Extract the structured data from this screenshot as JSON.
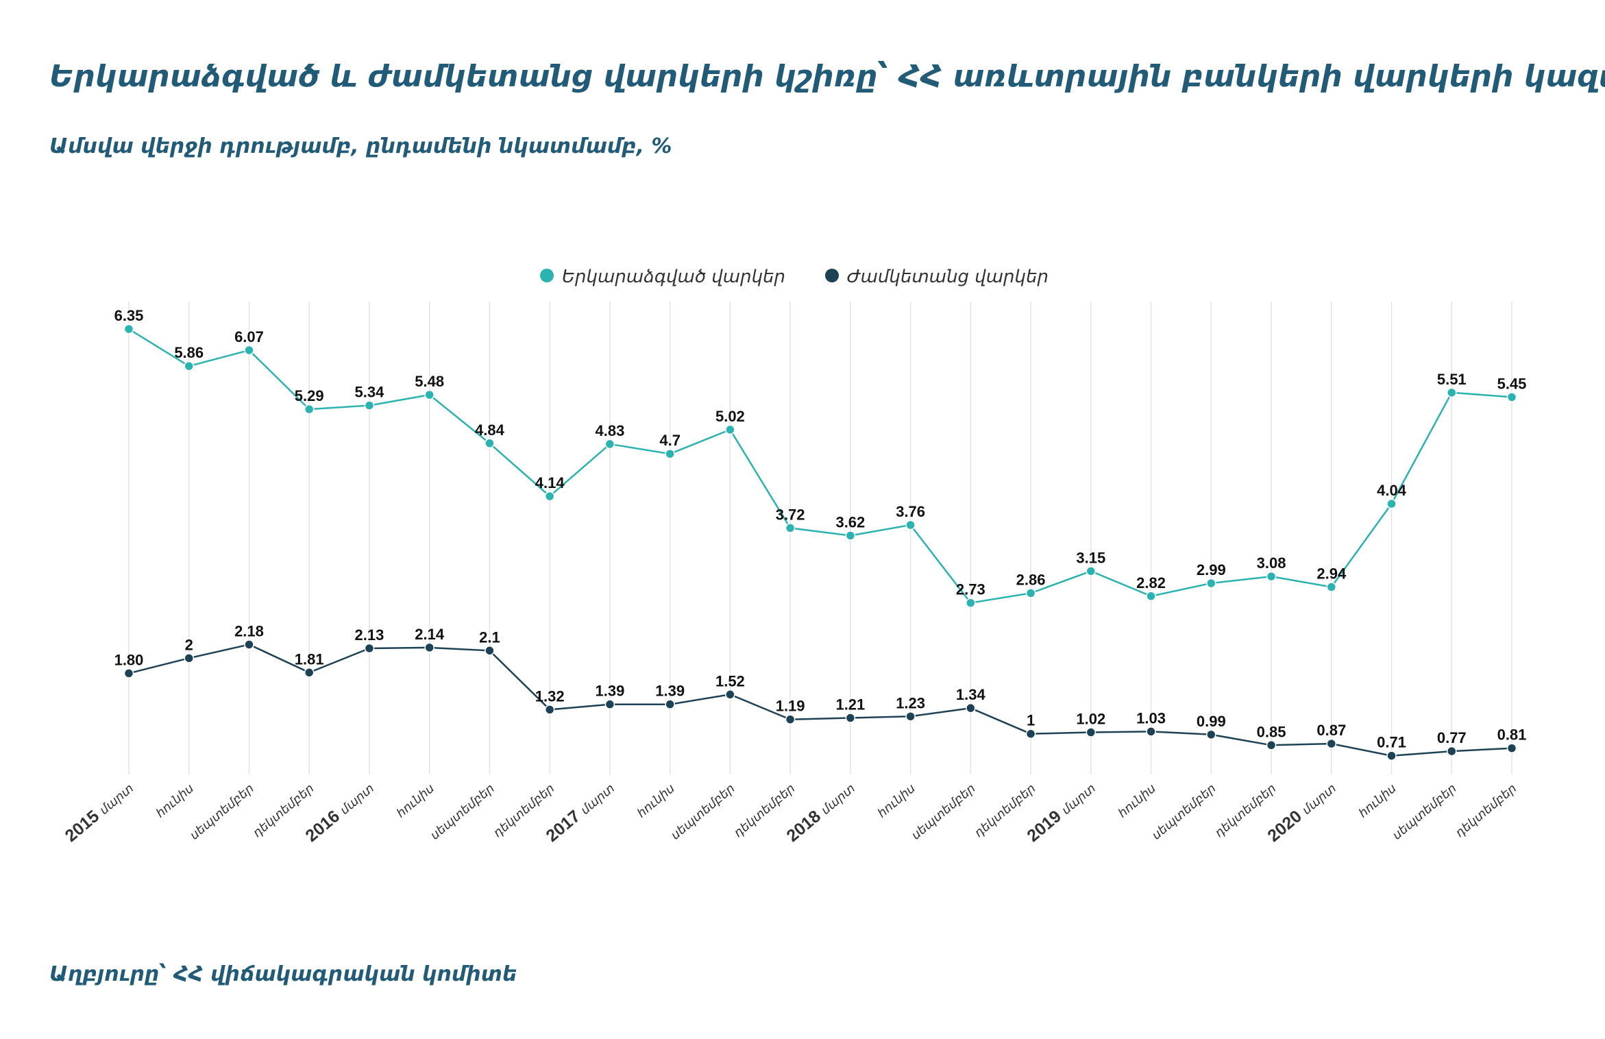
{
  "title": "Երկարաձգված և ժամկետանց վարկերի կշիռը՝  ՀՀ առևտրային բանկերի վարկերի կազմում",
  "subtitle": "Ամսվա վերջի դրությամբ, ընդամենի նկատմամբ, %",
  "source": "Աղբյուրը՝  ՀՀ վիճակագրական կոմիտե",
  "chart_data": {
    "type": "line",
    "categories": [
      {
        "year": "2015",
        "month": "մարտ"
      },
      {
        "year": "",
        "month": "հունիս"
      },
      {
        "year": "",
        "month": "սեպտեմբեր"
      },
      {
        "year": "",
        "month": "դեկտեմբեր"
      },
      {
        "year": "2016",
        "month": "մարտ"
      },
      {
        "year": "",
        "month": "հունիս"
      },
      {
        "year": "",
        "month": "սեպտեմբեր"
      },
      {
        "year": "",
        "month": "դեկտեմբեր"
      },
      {
        "year": "2017",
        "month": "մարտ"
      },
      {
        "year": "",
        "month": "հունիս"
      },
      {
        "year": "",
        "month": "սեպտեմբեր"
      },
      {
        "year": "",
        "month": "դեկտեմբեր"
      },
      {
        "year": "2018",
        "month": "մարտ"
      },
      {
        "year": "",
        "month": "հունիս"
      },
      {
        "year": "",
        "month": "սեպտեմբեր"
      },
      {
        "year": "",
        "month": "դեկտեմբեր"
      },
      {
        "year": "2019",
        "month": "մարտ"
      },
      {
        "year": "",
        "month": "հունիս"
      },
      {
        "year": "",
        "month": "սեպտեմբեր"
      },
      {
        "year": "",
        "month": "դեկտեմբեր"
      },
      {
        "year": "2020",
        "month": "մարտ"
      },
      {
        "year": "",
        "month": "հունիս"
      },
      {
        "year": "",
        "month": "սեպտեմբեր"
      },
      {
        "year": "",
        "month": "դեկտեմբեր"
      }
    ],
    "series": [
      {
        "name": "Երկարաձգված վարկեր",
        "color": "#2ab3b1",
        "values": [
          6.35,
          5.86,
          6.07,
          5.29,
          5.34,
          5.48,
          4.84,
          4.14,
          4.83,
          4.7,
          5.02,
          3.72,
          3.62,
          3.76,
          2.73,
          2.86,
          3.15,
          2.82,
          2.99,
          3.08,
          2.94,
          4.04,
          5.51,
          5.45
        ],
        "labels": [
          "6.35",
          "5.86",
          "6.07",
          "5.29",
          "5.34",
          "5.48",
          "4.84",
          "4.14",
          "4.83",
          "4.7",
          "5.02",
          "3.72",
          "3.62",
          "3.76",
          "2.73",
          "2.86",
          "3.15",
          "2.82",
          "2.99",
          "3.08",
          "2.94",
          "4.04",
          "5.51",
          "5.45"
        ]
      },
      {
        "name": "Ժամկետանց վարկեր",
        "color": "#1d4256",
        "values": [
          1.8,
          2,
          2.18,
          1.81,
          2.13,
          2.14,
          2.1,
          1.32,
          1.39,
          1.39,
          1.52,
          1.19,
          1.21,
          1.23,
          1.34,
          1,
          1.02,
          1.03,
          0.99,
          0.85,
          0.87,
          0.71,
          0.77,
          0.81
        ],
        "labels": [
          "1.80",
          "2",
          "2.18",
          "1.81",
          "2.13",
          "2.14",
          "2.1",
          "1.32",
          "1.39",
          "1.39",
          "1.52",
          "1.19",
          "1.21",
          "1.23",
          "1.34",
          "1",
          "1.02",
          "1.03",
          "0.99",
          "0.85",
          "0.87",
          "0.71",
          "0.77",
          "0.81"
        ]
      }
    ],
    "legend": "top-center",
    "grid": "vertical",
    "ylim": [
      0.3,
      6.55
    ]
  }
}
